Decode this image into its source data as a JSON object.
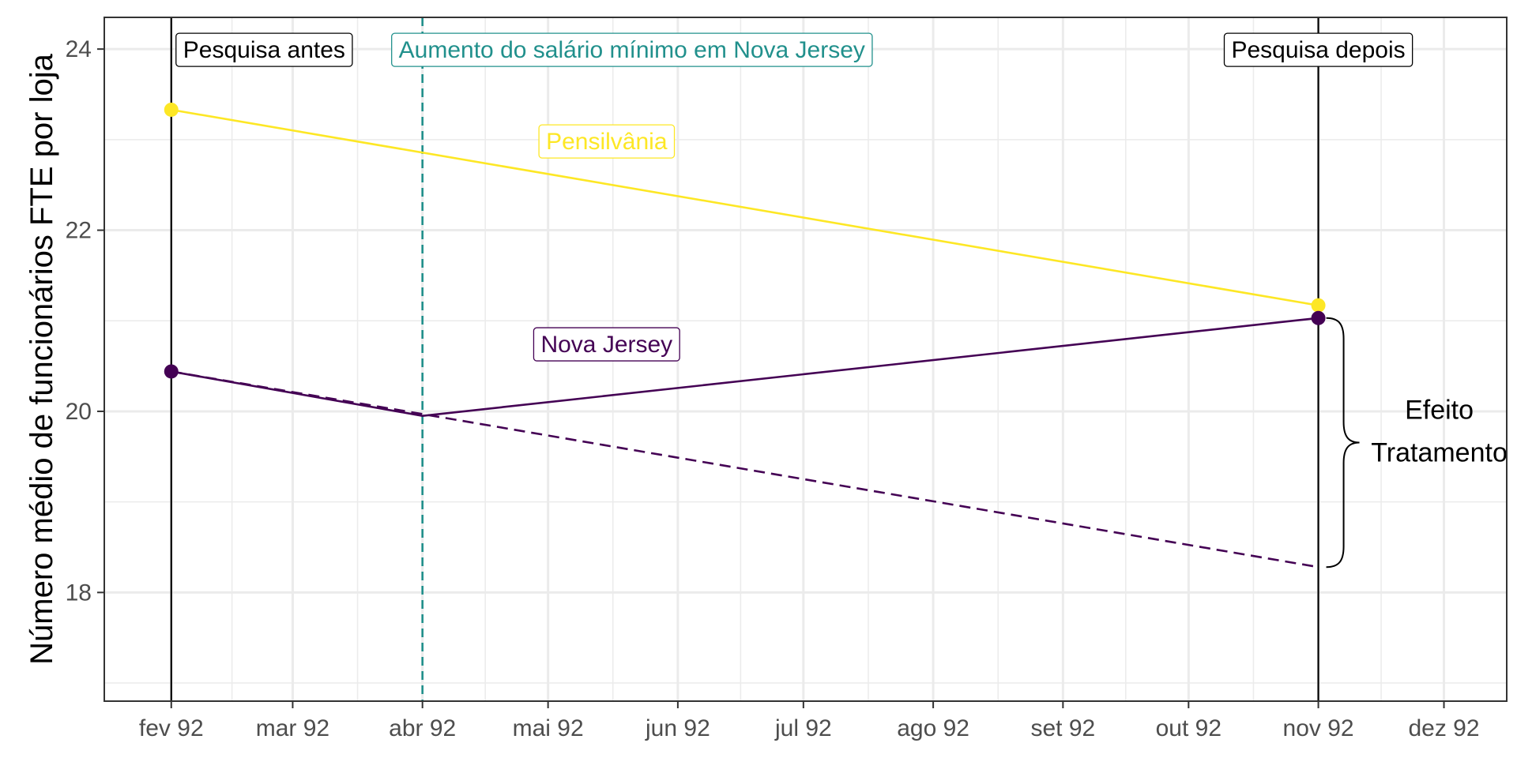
{
  "chart_data": {
    "type": "line",
    "title": "",
    "xlabel": "",
    "ylabel": "Número médio de funcionários FTE por loja",
    "x_tick_labels": [
      "fev 92",
      "mar 92",
      "abr 92",
      "mai 92",
      "jun 92",
      "jul 92",
      "ago 92",
      "set 92",
      "out 92",
      "nov 92",
      "dez 92"
    ],
    "x_tick_dates": [
      "1992-02-01",
      "1992-03-01",
      "1992-04-01",
      "1992-05-01",
      "1992-06-01",
      "1992-07-01",
      "1992-08-01",
      "1992-09-01",
      "1992-10-01",
      "1992-11-01",
      "1992-12-01"
    ],
    "xlim": [
      "1992-01-16",
      "1992-12-16"
    ],
    "y_ticks": [
      18,
      20,
      22,
      24
    ],
    "y_tick_labels": [
      "18",
      "20",
      "22",
      "24"
    ],
    "ylim": [
      16.8,
      24.35
    ],
    "grid": true,
    "colors": {
      "pensilvania": "#FDE725",
      "nova_jersey": "#440154",
      "event": "#21908C",
      "survey": "#000000"
    },
    "series": [
      {
        "name": "Pensilvânia",
        "line": "solid",
        "points": [
          {
            "x": "1992-02-01",
            "y": 23.33,
            "marker": true
          },
          {
            "x": "1992-11-01",
            "y": 21.17,
            "marker": true
          }
        ]
      },
      {
        "name": "Nova Jersey",
        "line": "solid",
        "points": [
          {
            "x": "1992-02-01",
            "y": 20.44,
            "marker": true
          },
          {
            "x": "1992-04-01",
            "y": 19.95,
            "marker": false
          },
          {
            "x": "1992-11-01",
            "y": 21.03,
            "marker": true
          }
        ]
      },
      {
        "name": "",
        "line": "dashed",
        "points": [
          {
            "x": "1992-02-01",
            "y": 20.44,
            "marker": false
          },
          {
            "x": "1992-04-01",
            "y": 19.97,
            "marker": false
          },
          {
            "x": "1992-11-01",
            "y": 18.28,
            "marker": false
          }
        ]
      }
    ],
    "vlines": [
      {
        "x": "1992-02-01",
        "style": "solid",
        "label": "Pesquisa antes"
      },
      {
        "x": "1992-04-01",
        "style": "dashed",
        "label": "Aumento do salário mínimo em Nova Jersey"
      },
      {
        "x": "1992-11-01",
        "style": "solid",
        "label": "Pesquisa depois"
      }
    ],
    "series_labels": [
      {
        "text": "Pensilvânia",
        "x": "1992-05-15",
        "y": 22.98
      },
      {
        "text": "Nova Jersey",
        "x": "1992-05-15",
        "y": 20.74
      }
    ],
    "brace": {
      "x": "1992-11-01",
      "y_from": 21.03,
      "y_to": 18.28,
      "label_lines": [
        "Efeito",
        "Tratamento"
      ]
    }
  }
}
